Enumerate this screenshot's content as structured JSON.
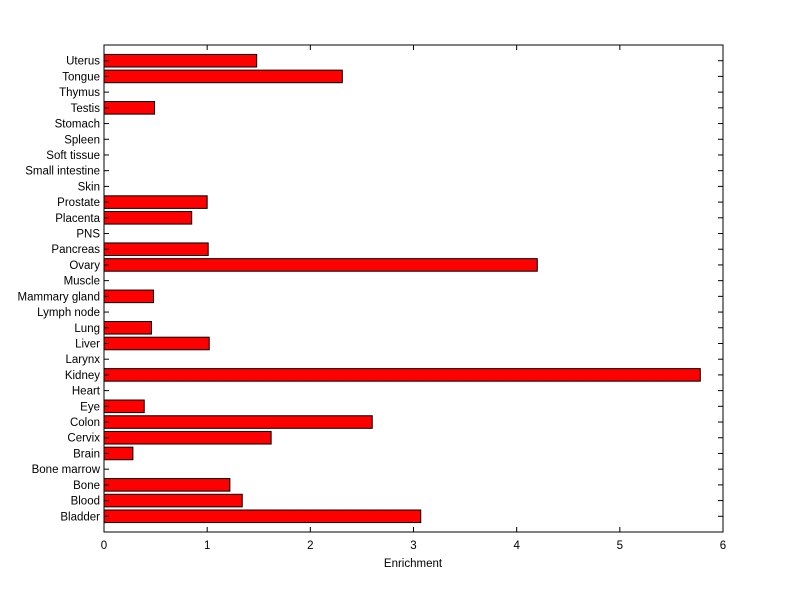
{
  "chart_data": {
    "type": "bar",
    "orientation": "horizontal",
    "title": "",
    "xlabel": "Enrichment",
    "ylabel": "",
    "xlim": [
      0,
      6
    ],
    "xticks": [
      0,
      1,
      2,
      3,
      4,
      5,
      6
    ],
    "grid": false,
    "bar_color": "#ff0000",
    "bar_edge_color": "#000000",
    "categories": [
      "Bladder",
      "Blood",
      "Bone",
      "Bone marrow",
      "Brain",
      "Cervix",
      "Colon",
      "Eye",
      "Heart",
      "Kidney",
      "Larynx",
      "Liver",
      "Lung",
      "Lymph node",
      "Mammary gland",
      "Muscle",
      "Ovary",
      "Pancreas",
      "PNS",
      "Placenta",
      "Prostate",
      "Skin",
      "Small intestine",
      "Soft tissue",
      "Spleen",
      "Stomach",
      "Testis",
      "Thymus",
      "Tongue",
      "Uterus"
    ],
    "values": [
      3.07,
      1.34,
      1.22,
      0,
      0.28,
      1.62,
      2.6,
      0.39,
      0,
      5.78,
      0,
      1.02,
      0.46,
      0,
      0.48,
      0,
      4.2,
      1.01,
      0,
      0.85,
      1.0,
      0,
      0,
      0,
      0,
      0,
      0.49,
      0,
      2.31,
      1.48
    ]
  }
}
